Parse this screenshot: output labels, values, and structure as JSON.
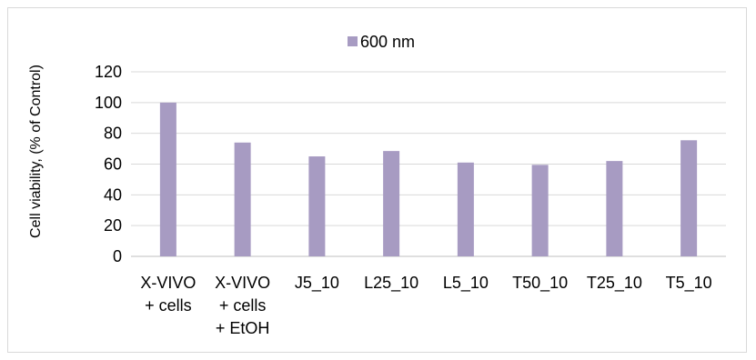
{
  "chart_data": {
    "type": "bar",
    "categories": [
      [
        "X-VIVO",
        "+ cells"
      ],
      [
        "X-VIVO",
        "+ cells",
        "+ EtOH"
      ],
      [
        "J5_10"
      ],
      [
        "L25_10"
      ],
      [
        "L5_10"
      ],
      [
        "T50_10"
      ],
      [
        "T25_10"
      ],
      [
        "T5_10"
      ]
    ],
    "series": [
      {
        "name": "600 nm",
        "values": [
          100,
          74,
          65,
          68.5,
          61,
          59.5,
          62,
          75.5
        ],
        "color": "#a79bc2"
      }
    ],
    "ylabel": "Cell viability, (% of Control)",
    "xlabel": "",
    "ylim": [
      0,
      120
    ],
    "yticks": [
      0,
      20,
      40,
      60,
      80,
      100,
      120
    ],
    "grid": true,
    "legend_position": "top"
  }
}
